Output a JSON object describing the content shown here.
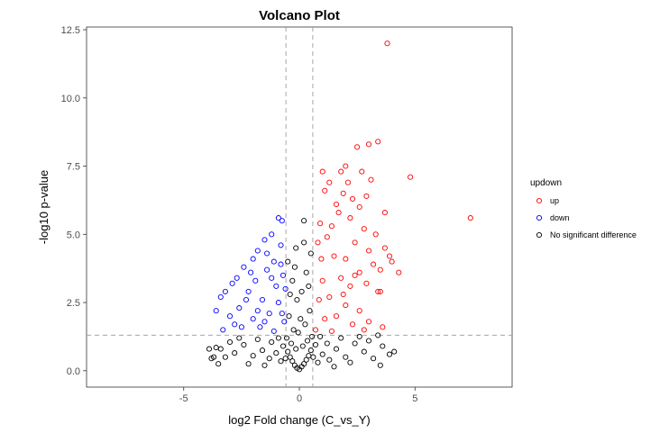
{
  "chart_data": {
    "type": "scatter",
    "title": "Volcano Plot",
    "xlabel": "log2 Fold change (C_vs_Y)",
    "ylabel": "-log10 p-value",
    "xlim": [
      -9.2,
      9.2
    ],
    "ylim": [
      -0.6,
      12.6
    ],
    "x_ticks": [
      -5,
      0,
      5
    ],
    "x_tick_labels": [
      "-5",
      "0",
      "5"
    ],
    "y_ticks": [
      0,
      2.5,
      5,
      7.5,
      10,
      12.5
    ],
    "y_tick_labels": [
      "0.0",
      "2.5",
      "5.0",
      "7.5",
      "10.0",
      "12.5"
    ],
    "thresholds": {
      "log2fc": [
        -0.58,
        0.58
      ],
      "neg_log10_p": 1.3
    },
    "grid": false,
    "legend": {
      "title": "updown",
      "position": "right"
    },
    "series": [
      {
        "name": "up",
        "color": "#ff0000",
        "points": [
          [
            3.8,
            12.0
          ],
          [
            2.5,
            8.2
          ],
          [
            3.0,
            8.3
          ],
          [
            3.4,
            8.4
          ],
          [
            2.0,
            7.5
          ],
          [
            1.8,
            7.3
          ],
          [
            2.7,
            7.3
          ],
          [
            1.0,
            7.3
          ],
          [
            4.8,
            7.1
          ],
          [
            3.1,
            7.0
          ],
          [
            1.3,
            6.9
          ],
          [
            2.1,
            6.9
          ],
          [
            7.4,
            5.6
          ],
          [
            3.7,
            5.8
          ],
          [
            2.6,
            6.0
          ],
          [
            1.6,
            6.1
          ],
          [
            2.3,
            6.3
          ],
          [
            1.1,
            6.6
          ],
          [
            2.9,
            6.4
          ],
          [
            1.9,
            6.5
          ],
          [
            0.9,
            5.4
          ],
          [
            1.4,
            5.3
          ],
          [
            2.2,
            5.6
          ],
          [
            2.8,
            5.2
          ],
          [
            3.3,
            5.0
          ],
          [
            3.9,
            4.2
          ],
          [
            4.3,
            3.6
          ],
          [
            3.5,
            3.7
          ],
          [
            3.5,
            2.9
          ],
          [
            1.7,
            5.8
          ],
          [
            0.8,
            4.7
          ],
          [
            1.2,
            4.9
          ],
          [
            2.4,
            4.7
          ],
          [
            3.0,
            4.4
          ],
          [
            1.5,
            4.2
          ],
          [
            2.0,
            4.1
          ],
          [
            0.95,
            4.1
          ],
          [
            3.2,
            3.9
          ],
          [
            2.6,
            3.6
          ],
          [
            1.8,
            3.4
          ],
          [
            1.0,
            3.3
          ],
          [
            2.2,
            3.1
          ],
          [
            2.9,
            3.2
          ],
          [
            3.4,
            2.9
          ],
          [
            1.3,
            2.7
          ],
          [
            2.0,
            2.4
          ],
          [
            2.6,
            2.2
          ],
          [
            1.6,
            2.0
          ],
          [
            3.0,
            1.8
          ],
          [
            3.6,
            1.6
          ],
          [
            1.1,
            1.9
          ],
          [
            2.3,
            1.7
          ],
          [
            0.7,
            1.5
          ],
          [
            1.4,
            1.45
          ],
          [
            2.8,
            1.5
          ],
          [
            0.85,
            2.6
          ],
          [
            1.9,
            2.8
          ],
          [
            2.4,
            3.5
          ],
          [
            3.7,
            4.5
          ],
          [
            4.0,
            4.0
          ]
        ]
      },
      {
        "name": "down",
        "color": "#0000ff",
        "points": [
          [
            -0.9,
            5.6
          ],
          [
            -0.75,
            5.5
          ],
          [
            -1.2,
            5.0
          ],
          [
            -1.5,
            4.8
          ],
          [
            -0.8,
            4.6
          ],
          [
            -1.8,
            4.4
          ],
          [
            -2.0,
            4.1
          ],
          [
            -1.1,
            4.0
          ],
          [
            -2.4,
            3.8
          ],
          [
            -1.4,
            3.7
          ],
          [
            -0.7,
            3.5
          ],
          [
            -2.7,
            3.4
          ],
          [
            -2.9,
            3.2
          ],
          [
            -1.9,
            3.3
          ],
          [
            -1.0,
            3.1
          ],
          [
            -3.2,
            2.9
          ],
          [
            -3.4,
            2.7
          ],
          [
            -2.2,
            2.9
          ],
          [
            -1.6,
            2.6
          ],
          [
            -0.9,
            2.5
          ],
          [
            -2.6,
            2.3
          ],
          [
            -3.6,
            2.2
          ],
          [
            -3.0,
            2.0
          ],
          [
            -1.3,
            2.1
          ],
          [
            -2.0,
            1.9
          ],
          [
            -0.65,
            1.8
          ],
          [
            -1.7,
            1.6
          ],
          [
            -2.5,
            1.6
          ],
          [
            -3.3,
            1.5
          ],
          [
            -1.1,
            1.45
          ],
          [
            -0.8,
            3.9
          ],
          [
            -1.4,
            4.3
          ],
          [
            -0.6,
            3.0
          ],
          [
            -1.2,
            3.4
          ],
          [
            -2.1,
            3.6
          ],
          [
            -1.8,
            2.2
          ],
          [
            -0.75,
            2.1
          ],
          [
            -2.3,
            2.6
          ],
          [
            -1.5,
            1.8
          ],
          [
            -2.8,
            1.7
          ]
        ]
      },
      {
        "name": "No significant difference",
        "color": "#000000",
        "points": [
          [
            0.0,
            0.05
          ],
          [
            -0.1,
            0.1
          ],
          [
            0.1,
            0.15
          ],
          [
            -0.2,
            0.2
          ],
          [
            0.2,
            0.25
          ],
          [
            -0.3,
            0.35
          ],
          [
            0.3,
            0.4
          ],
          [
            -0.4,
            0.5
          ],
          [
            0.4,
            0.55
          ],
          [
            -0.5,
            0.7
          ],
          [
            0.5,
            0.75
          ],
          [
            -0.15,
            0.8
          ],
          [
            0.15,
            0.9
          ],
          [
            -0.35,
            1.0
          ],
          [
            0.35,
            1.1
          ],
          [
            -0.55,
            1.2
          ],
          [
            0.55,
            1.25
          ],
          [
            -0.25,
            1.5
          ],
          [
            0.25,
            1.7
          ],
          [
            -0.45,
            2.0
          ],
          [
            0.45,
            2.2
          ],
          [
            -0.1,
            2.6
          ],
          [
            0.1,
            2.9
          ],
          [
            -0.3,
            3.3
          ],
          [
            0.3,
            3.6
          ],
          [
            -0.5,
            4.0
          ],
          [
            0.5,
            4.3
          ],
          [
            0.2,
            4.7
          ],
          [
            -0.2,
            3.8
          ],
          [
            0.4,
            3.1
          ],
          [
            -0.4,
            2.8
          ],
          [
            0.05,
            1.9
          ],
          [
            -0.05,
            1.4
          ],
          [
            0.6,
            0.5
          ],
          [
            -0.6,
            0.45
          ],
          [
            0.8,
            0.3
          ],
          [
            -0.8,
            0.35
          ],
          [
            1.0,
            0.6
          ],
          [
            -1.0,
            0.65
          ],
          [
            1.3,
            0.4
          ],
          [
            -1.3,
            0.45
          ],
          [
            1.6,
            0.8
          ],
          [
            -1.6,
            0.75
          ],
          [
            2.0,
            0.5
          ],
          [
            -2.0,
            0.55
          ],
          [
            2.4,
            1.0
          ],
          [
            -2.4,
            0.95
          ],
          [
            2.8,
            0.7
          ],
          [
            -2.8,
            0.65
          ],
          [
            3.2,
            0.45
          ],
          [
            -3.2,
            0.5
          ],
          [
            3.6,
            0.9
          ],
          [
            -3.6,
            0.85
          ],
          [
            3.9,
            0.6
          ],
          [
            -3.7,
            0.5
          ],
          [
            4.1,
            0.7
          ],
          [
            3.0,
            1.1
          ],
          [
            -3.0,
            1.05
          ],
          [
            1.8,
            1.2
          ],
          [
            -1.8,
            1.15
          ],
          [
            1.2,
            1.0
          ],
          [
            -1.2,
            1.05
          ],
          [
            0.9,
            1.25
          ],
          [
            -0.9,
            1.2
          ],
          [
            2.2,
            0.3
          ],
          [
            -2.2,
            0.25
          ],
          [
            3.5,
            0.2
          ],
          [
            -3.5,
            0.25
          ],
          [
            1.5,
            0.15
          ],
          [
            -1.5,
            0.2
          ],
          [
            0.7,
            0.95
          ],
          [
            -0.7,
            0.9
          ],
          [
            2.6,
            1.25
          ],
          [
            -2.6,
            1.2
          ],
          [
            3.4,
            1.3
          ],
          [
            -3.4,
            0.8
          ],
          [
            -3.9,
            0.8
          ],
          [
            -3.8,
            0.45
          ],
          [
            0.2,
            5.5
          ],
          [
            -0.15,
            4.5
          ]
        ]
      }
    ]
  }
}
